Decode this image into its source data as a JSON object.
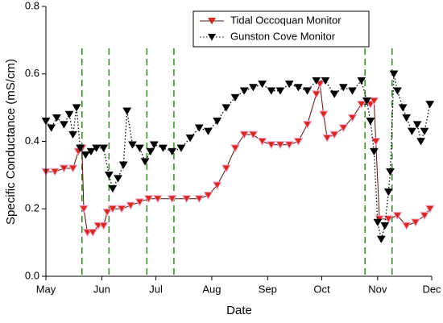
{
  "chart_data": {
    "type": "line",
    "x_label": "Date",
    "y_label": "Specific Conductance (mS/cm)",
    "xlim": [
      0,
      214
    ],
    "xticks": [
      {
        "value": 0,
        "label": "May"
      },
      {
        "value": 31,
        "label": "Jun"
      },
      {
        "value": 61,
        "label": "Jul"
      },
      {
        "value": 92,
        "label": "Aug"
      },
      {
        "value": 123,
        "label": "Sep"
      },
      {
        "value": 153,
        "label": "Oct"
      },
      {
        "value": 184,
        "label": "Nov"
      },
      {
        "value": 214,
        "label": "Dec"
      }
    ],
    "ylim": [
      0,
      0.8
    ],
    "yticks": [
      {
        "value": 0,
        "label": "0.0"
      },
      0.2,
      0.4,
      0.6,
      0.8
    ],
    "reference_lines": [
      20,
      35,
      56,
      71,
      177,
      192
    ],
    "reference_color": "#2e8b1e",
    "legend": "upper right",
    "series": [
      {
        "name": "Tidal Occoquan Monitor",
        "color": "#d42a1e",
        "line_color": "#5a1010",
        "line_style": "solid",
        "x": [
          0,
          5,
          10,
          15,
          18,
          20,
          21,
          23,
          26,
          29,
          32,
          34,
          37,
          42,
          47,
          52,
          57,
          62,
          70,
          78,
          85,
          90,
          95,
          100,
          105,
          110,
          115,
          120,
          125,
          130,
          135,
          140,
          145,
          150,
          152,
          154,
          156,
          160,
          165,
          170,
          175,
          180,
          182,
          183,
          185,
          190,
          195,
          200,
          205,
          210,
          213
        ],
        "values": [
          0.31,
          0.31,
          0.32,
          0.32,
          0.37,
          0.38,
          0.2,
          0.13,
          0.13,
          0.15,
          0.15,
          0.19,
          0.2,
          0.2,
          0.21,
          0.22,
          0.23,
          0.23,
          0.23,
          0.23,
          0.23,
          0.24,
          0.27,
          0.32,
          0.38,
          0.42,
          0.42,
          0.4,
          0.39,
          0.39,
          0.39,
          0.4,
          0.45,
          0.54,
          0.57,
          0.48,
          0.41,
          0.42,
          0.44,
          0.47,
          0.51,
          0.51,
          0.52,
          0.4,
          0.17,
          0.17,
          0.18,
          0.15,
          0.16,
          0.18,
          0.2
        ]
      },
      {
        "name": "Gunston Cove Monitor",
        "color": "#000000",
        "line_color": "#000000",
        "line_style": "dotted",
        "x": [
          0,
          3,
          6,
          10,
          13,
          15,
          17,
          19,
          22,
          25,
          28,
          32,
          35,
          37,
          40,
          43,
          45,
          48,
          52,
          55,
          58,
          60,
          65,
          70,
          75,
          80,
          85,
          90,
          95,
          100,
          105,
          110,
          115,
          120,
          125,
          130,
          135,
          140,
          145,
          150,
          155,
          160,
          165,
          170,
          175,
          178,
          180,
          182,
          184,
          186,
          188,
          190,
          191,
          193,
          195,
          198,
          200,
          203,
          206,
          208,
          210,
          213
        ],
        "values": [
          0.46,
          0.44,
          0.47,
          0.45,
          0.48,
          0.42,
          0.5,
          0.38,
          0.36,
          0.37,
          0.38,
          0.38,
          0.3,
          0.26,
          0.29,
          0.33,
          0.49,
          0.39,
          0.38,
          0.34,
          0.37,
          0.39,
          0.38,
          0.37,
          0.38,
          0.41,
          0.44,
          0.43,
          0.46,
          0.5,
          0.53,
          0.55,
          0.56,
          0.57,
          0.55,
          0.55,
          0.57,
          0.56,
          0.55,
          0.58,
          0.58,
          0.54,
          0.56,
          0.55,
          0.58,
          0.52,
          0.46,
          0.37,
          0.16,
          0.11,
          0.15,
          0.25,
          0.31,
          0.6,
          0.55,
          0.5,
          0.47,
          0.43,
          0.45,
          0.4,
          0.43,
          0.51
        ]
      }
    ]
  }
}
